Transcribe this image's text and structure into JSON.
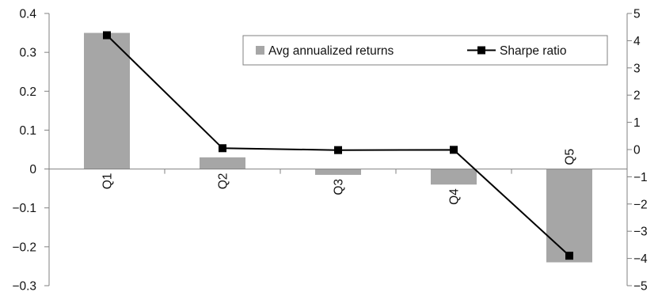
{
  "chart_data": {
    "type": "bar+line",
    "categories": [
      "Q1",
      "Q2",
      "Q3",
      "Q4",
      "Q5"
    ],
    "series": [
      {
        "name": "Avg annualized returns",
        "type": "bar",
        "axis": "left",
        "color": "#a6a6a6",
        "values": [
          0.35,
          0.03,
          -0.015,
          -0.04,
          -0.24
        ]
      },
      {
        "name": "Sharpe ratio",
        "type": "line",
        "axis": "right",
        "color": "#000000",
        "marker": "square",
        "values": [
          4.2,
          0.05,
          -0.02,
          -0.01,
          -3.9
        ]
      }
    ],
    "y_left": {
      "range": [
        -0.3,
        0.4
      ],
      "ticks": [
        0.4,
        0.3,
        0.2,
        0.1,
        0,
        -0.1,
        -0.2,
        -0.3
      ],
      "tick_labels": [
        "0.4",
        "0.3",
        "0.2",
        "0.1",
        "0",
        "−0.1",
        "−0.2",
        "−0.3"
      ]
    },
    "y_right": {
      "range": [
        -5,
        5
      ],
      "ticks": [
        5,
        4,
        3,
        2,
        1,
        0,
        -1,
        -2,
        -3,
        -4,
        -5
      ],
      "tick_labels": [
        "5",
        "4",
        "3",
        "2",
        "1",
        "0",
        "−1",
        "−2",
        "−3",
        "−4",
        "−5"
      ]
    },
    "grid": false,
    "legend": {
      "placement": "top-right",
      "boxed": true
    },
    "axis_color": "#808080"
  }
}
